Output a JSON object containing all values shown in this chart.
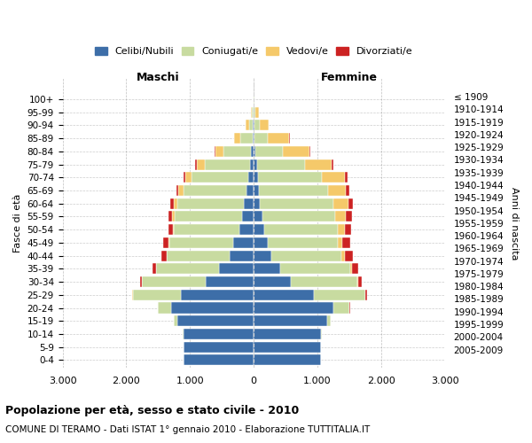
{
  "age_groups": [
    "0-4",
    "5-9",
    "10-14",
    "15-19",
    "20-24",
    "25-29",
    "30-34",
    "35-39",
    "40-44",
    "45-49",
    "50-54",
    "55-59",
    "60-64",
    "65-69",
    "70-74",
    "75-79",
    "80-84",
    "85-89",
    "90-94",
    "95-99",
    "100+"
  ],
  "birth_years": [
    "2005-2009",
    "2000-2004",
    "1995-1999",
    "1990-1994",
    "1985-1989",
    "1980-1984",
    "1975-1979",
    "1970-1974",
    "1965-1969",
    "1960-1964",
    "1955-1959",
    "1950-1954",
    "1945-1949",
    "1940-1944",
    "1935-1939",
    "1930-1934",
    "1925-1929",
    "1920-1924",
    "1915-1919",
    "1910-1914",
    "≤ 1909"
  ],
  "males": {
    "celibe": [
      1100,
      1100,
      1100,
      1200,
      1300,
      1150,
      750,
      550,
      380,
      320,
      230,
      190,
      150,
      120,
      90,
      65,
      40,
      22,
      12,
      6,
      3
    ],
    "coniugato": [
      2,
      4,
      15,
      50,
      200,
      750,
      1000,
      980,
      980,
      1000,
      1020,
      1050,
      1050,
      980,
      880,
      700,
      440,
      190,
      65,
      20,
      4
    ],
    "vedovo": [
      0,
      0,
      0,
      0,
      1,
      2,
      4,
      5,
      10,
      15,
      25,
      40,
      60,
      80,
      100,
      130,
      120,
      90,
      45,
      12,
      2
    ],
    "divorziato": [
      0,
      0,
      0,
      2,
      5,
      10,
      30,
      55,
      85,
      90,
      65,
      55,
      45,
      35,
      30,
      25,
      10,
      5,
      0,
      0,
      0
    ]
  },
  "females": {
    "nubile": [
      1050,
      1050,
      1050,
      1150,
      1250,
      950,
      580,
      420,
      280,
      220,
      170,
      130,
      100,
      80,
      65,
      50,
      30,
      18,
      8,
      4,
      3
    ],
    "coniugata": [
      3,
      5,
      20,
      60,
      250,
      800,
      1050,
      1100,
      1100,
      1100,
      1150,
      1150,
      1150,
      1080,
      1000,
      750,
      420,
      200,
      80,
      22,
      5
    ],
    "vedova": [
      0,
      0,
      0,
      0,
      2,
      5,
      12,
      25,
      45,
      75,
      110,
      170,
      230,
      290,
      360,
      420,
      430,
      340,
      150,
      50,
      8
    ],
    "divorziata": [
      0,
      0,
      0,
      2,
      8,
      18,
      50,
      90,
      130,
      120,
      95,
      85,
      70,
      50,
      40,
      30,
      12,
      5,
      2,
      0,
      0
    ]
  },
  "colors": {
    "celibe": "#3d6ea8",
    "coniugato": "#c8dba0",
    "vedovo": "#f5c96a",
    "divorziato": "#cc2222"
  },
  "xlim": 3000,
  "title": "Popolazione per età, sesso e stato civile - 2010",
  "subtitle": "COMUNE DI TERAMO - Dati ISTAT 1° gennaio 2010 - Elaborazione TUTTITALIA.IT",
  "ylabel_left": "Fasce di età",
  "ylabel_right": "Anni di nascita",
  "xlabel_male": "Maschi",
  "xlabel_female": "Femmine",
  "legend_labels": [
    "Celibi/Nubili",
    "Coniugati/e",
    "Vedovi/e",
    "Divorziati/e"
  ],
  "tick_labels": [
    "3.000",
    "2.000",
    "1.000",
    "0",
    "1.000",
    "2.000",
    "3.000"
  ],
  "tick_vals": [
    -3000,
    -2000,
    -1000,
    0,
    1000,
    2000,
    3000
  ]
}
